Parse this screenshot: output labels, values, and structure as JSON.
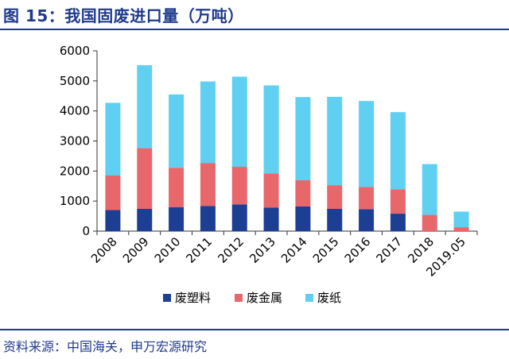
{
  "figure": {
    "title": "图 15：我国固废进口量（万吨）",
    "source": "资料来源：中国海关，申万宏源研究"
  },
  "colors": {
    "heading": "#1F3A8C",
    "废塑料": "#1C3F94",
    "废金属": "#E8676A",
    "废纸": "#5FD0F2"
  },
  "chart_data": {
    "type": "bar",
    "stacked": true,
    "categories": [
      "2008",
      "2009",
      "2010",
      "2011",
      "2012",
      "2013",
      "2014",
      "2015",
      "2016",
      "2017",
      "2018",
      "2019.05"
    ],
    "series": [
      {
        "name": "废塑料",
        "values": [
          700,
          740,
          800,
          840,
          890,
          780,
          820,
          740,
          730,
          580,
          0,
          0
        ]
      },
      {
        "name": "废金属",
        "values": [
          1150,
          2020,
          1310,
          1420,
          1250,
          1140,
          880,
          790,
          740,
          810,
          540,
          130
        ]
      },
      {
        "name": "废纸",
        "values": [
          2420,
          2760,
          2440,
          2720,
          3000,
          2930,
          2760,
          2940,
          2860,
          2570,
          1690,
          520
        ]
      }
    ],
    "ylim": [
      0,
      6000
    ],
    "yticks": [
      "0",
      "1000",
      "2000",
      "3000",
      "4000",
      "5000",
      "6000"
    ],
    "legend": "bottom",
    "grid": false
  }
}
